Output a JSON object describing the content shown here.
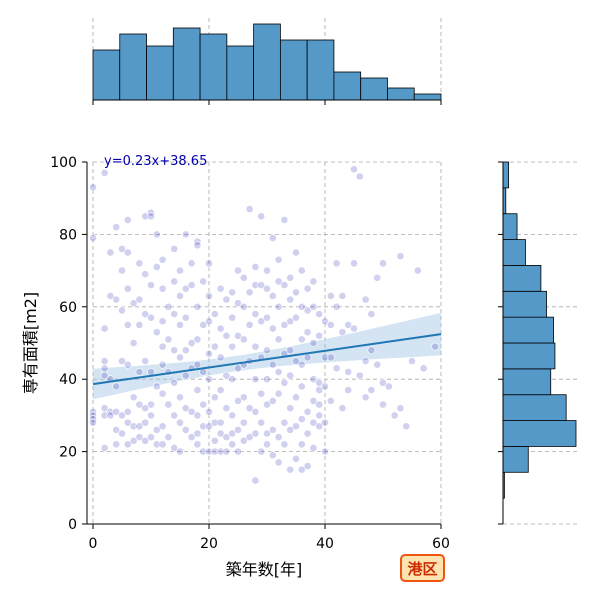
{
  "chart_data": {
    "type": "scatter",
    "xlabel": "築年数[年]",
    "ylabel": "専有面積[m2]",
    "xlim": [
      0,
      60
    ],
    "ylim": [
      0,
      100
    ],
    "xticks": [
      0,
      20,
      40,
      60
    ],
    "yticks": [
      0,
      20,
      40,
      60,
      80,
      100
    ],
    "grid": true,
    "regression": {
      "slope": 0.23,
      "intercept": 38.65,
      "label": "y=0.23x+38.65"
    },
    "badge": "港区",
    "colors": {
      "point": "#2b2bb8",
      "line": "#1f77b4",
      "band": "#9fc3e2",
      "hist": "#5599c9",
      "badge_fill": "#fde3b0",
      "badge_border": "#ee5511"
    },
    "points": [
      [
        0,
        93
      ],
      [
        0,
        79
      ],
      [
        0,
        31
      ],
      [
        0,
        30
      ],
      [
        0,
        29
      ],
      [
        0,
        28
      ],
      [
        2,
        97
      ],
      [
        2,
        54
      ],
      [
        2,
        45
      ],
      [
        2,
        43
      ],
      [
        2,
        41
      ],
      [
        2,
        32
      ],
      [
        2,
        30
      ],
      [
        2,
        21
      ],
      [
        3,
        75
      ],
      [
        3,
        63
      ],
      [
        3,
        40
      ],
      [
        3,
        31
      ],
      [
        3,
        30
      ],
      [
        4,
        82
      ],
      [
        4,
        62
      ],
      [
        4,
        38
      ],
      [
        4,
        31
      ],
      [
        4,
        26
      ],
      [
        4,
        22
      ],
      [
        5,
        76
      ],
      [
        5,
        70
      ],
      [
        5,
        59
      ],
      [
        5,
        45
      ],
      [
        5,
        30
      ],
      [
        5,
        25
      ],
      [
        6,
        84
      ],
      [
        6,
        75
      ],
      [
        6,
        65
      ],
      [
        6,
        55
      ],
      [
        6,
        44
      ],
      [
        6,
        31
      ],
      [
        6,
        28
      ],
      [
        6,
        22
      ],
      [
        7,
        61
      ],
      [
        7,
        50
      ],
      [
        7,
        35
      ],
      [
        7,
        27
      ],
      [
        7,
        23
      ],
      [
        8,
        72
      ],
      [
        8,
        62
      ],
      [
        8,
        55
      ],
      [
        8,
        42
      ],
      [
        8,
        33
      ],
      [
        8,
        27
      ],
      [
        8,
        24
      ],
      [
        9,
        85
      ],
      [
        9,
        69
      ],
      [
        9,
        58
      ],
      [
        9,
        45
      ],
      [
        9,
        32
      ],
      [
        9,
        28
      ],
      [
        9,
        23
      ],
      [
        10,
        86
      ],
      [
        10,
        85
      ],
      [
        10,
        66
      ],
      [
        10,
        57
      ],
      [
        10,
        42
      ],
      [
        10,
        33
      ],
      [
        10,
        30
      ],
      [
        10,
        24
      ],
      [
        11,
        80
      ],
      [
        11,
        71
      ],
      [
        11,
        53
      ],
      [
        11,
        38
      ],
      [
        11,
        26
      ],
      [
        11,
        22
      ],
      [
        12,
        73
      ],
      [
        12,
        65
      ],
      [
        12,
        56
      ],
      [
        12,
        49
      ],
      [
        12,
        44
      ],
      [
        12,
        36
      ],
      [
        12,
        27
      ],
      [
        12,
        22
      ],
      [
        13,
        60
      ],
      [
        13,
        51
      ],
      [
        13,
        42
      ],
      [
        13,
        33
      ],
      [
        13,
        24
      ],
      [
        14,
        76
      ],
      [
        14,
        67
      ],
      [
        14,
        58
      ],
      [
        14,
        48
      ],
      [
        14,
        39
      ],
      [
        14,
        30
      ],
      [
        14,
        21
      ],
      [
        15,
        70
      ],
      [
        15,
        63
      ],
      [
        15,
        55
      ],
      [
        15,
        46
      ],
      [
        15,
        35
      ],
      [
        15,
        28
      ],
      [
        15,
        20
      ],
      [
        16,
        80
      ],
      [
        16,
        65
      ],
      [
        16,
        57
      ],
      [
        16,
        48
      ],
      [
        16,
        41
      ],
      [
        16,
        32
      ],
      [
        16,
        26
      ],
      [
        17,
        72
      ],
      [
        17,
        66
      ],
      [
        17,
        50
      ],
      [
        17,
        43
      ],
      [
        17,
        31
      ],
      [
        17,
        24
      ],
      [
        18,
        78
      ],
      [
        18,
        77
      ],
      [
        18,
        60
      ],
      [
        18,
        51
      ],
      [
        18,
        44
      ],
      [
        18,
        37
      ],
      [
        18,
        30
      ],
      [
        18,
        25
      ],
      [
        18,
        22
      ],
      [
        19,
        67
      ],
      [
        19,
        55
      ],
      [
        19,
        42
      ],
      [
        19,
        33
      ],
      [
        19,
        27
      ],
      [
        19,
        20
      ],
      [
        20,
        72
      ],
      [
        20,
        63
      ],
      [
        20,
        56
      ],
      [
        20,
        47
      ],
      [
        20,
        40
      ],
      [
        20,
        31
      ],
      [
        20,
        27
      ],
      [
        20,
        20
      ],
      [
        21,
        58
      ],
      [
        21,
        49
      ],
      [
        21,
        35
      ],
      [
        21,
        28
      ],
      [
        21,
        23
      ],
      [
        21,
        20
      ],
      [
        22,
        65
      ],
      [
        22,
        54
      ],
      [
        22,
        46
      ],
      [
        22,
        37
      ],
      [
        22,
        28
      ],
      [
        22,
        25
      ],
      [
        22,
        20
      ],
      [
        23,
        62
      ],
      [
        23,
        52
      ],
      [
        23,
        41
      ],
      [
        23,
        32
      ],
      [
        23,
        24
      ],
      [
        23,
        20
      ],
      [
        24,
        64
      ],
      [
        24,
        57
      ],
      [
        24,
        49
      ],
      [
        24,
        40
      ],
      [
        24,
        30
      ],
      [
        24,
        25
      ],
      [
        24,
        22
      ],
      [
        25,
        70
      ],
      [
        25,
        61
      ],
      [
        25,
        52
      ],
      [
        25,
        43
      ],
      [
        25,
        34
      ],
      [
        25,
        26
      ],
      [
        25,
        20
      ],
      [
        26,
        68
      ],
      [
        26,
        60
      ],
      [
        26,
        51
      ],
      [
        26,
        44
      ],
      [
        26,
        35
      ],
      [
        26,
        28
      ],
      [
        26,
        23
      ],
      [
        27,
        87
      ],
      [
        27,
        64
      ],
      [
        27,
        55
      ],
      [
        27,
        45
      ],
      [
        27,
        32
      ],
      [
        27,
        24
      ],
      [
        28,
        71
      ],
      [
        28,
        66
      ],
      [
        28,
        58
      ],
      [
        28,
        49
      ],
      [
        28,
        40
      ],
      [
        28,
        31
      ],
      [
        28,
        25
      ],
      [
        28,
        12
      ],
      [
        29,
        85
      ],
      [
        29,
        66
      ],
      [
        29,
        56
      ],
      [
        29,
        46
      ],
      [
        29,
        36
      ],
      [
        29,
        28
      ],
      [
        29,
        20
      ],
      [
        30,
        70
      ],
      [
        30,
        65
      ],
      [
        30,
        57
      ],
      [
        30,
        48
      ],
      [
        30,
        40
      ],
      [
        30,
        33
      ],
      [
        30,
        25
      ],
      [
        30,
        22
      ],
      [
        31,
        79
      ],
      [
        31,
        63
      ],
      [
        31,
        54
      ],
      [
        31,
        44
      ],
      [
        31,
        34
      ],
      [
        31,
        26
      ],
      [
        31,
        19
      ],
      [
        32,
        73
      ],
      [
        32,
        67
      ],
      [
        32,
        60
      ],
      [
        32,
        51
      ],
      [
        32,
        42
      ],
      [
        32,
        36
      ],
      [
        32,
        24
      ],
      [
        32,
        17
      ],
      [
        33,
        84
      ],
      [
        33,
        66
      ],
      [
        33,
        55
      ],
      [
        33,
        47
      ],
      [
        33,
        39
      ],
      [
        33,
        28
      ],
      [
        33,
        22
      ],
      [
        34,
        68
      ],
      [
        34,
        62
      ],
      [
        34,
        56
      ],
      [
        34,
        48
      ],
      [
        34,
        41
      ],
      [
        34,
        32
      ],
      [
        34,
        26
      ],
      [
        34,
        15
      ],
      [
        35,
        75
      ],
      [
        35,
        64
      ],
      [
        35,
        57
      ],
      [
        35,
        45
      ],
      [
        35,
        35
      ],
      [
        35,
        27
      ],
      [
        35,
        18
      ],
      [
        36,
        70
      ],
      [
        36,
        60
      ],
      [
        36,
        51
      ],
      [
        36,
        44
      ],
      [
        36,
        38
      ],
      [
        36,
        29
      ],
      [
        36,
        22
      ],
      [
        36,
        15
      ],
      [
        37,
        65
      ],
      [
        37,
        59
      ],
      [
        37,
        53
      ],
      [
        37,
        46
      ],
      [
        37,
        31
      ],
      [
        37,
        25
      ],
      [
        37,
        16
      ],
      [
        38,
        67
      ],
      [
        38,
        60
      ],
      [
        38,
        50
      ],
      [
        38,
        40
      ],
      [
        38,
        34
      ],
      [
        38,
        28
      ],
      [
        38,
        21
      ],
      [
        39,
        58
      ],
      [
        39,
        52
      ],
      [
        39,
        39
      ],
      [
        39,
        37
      ],
      [
        39,
        33
      ],
      [
        39,
        30
      ],
      [
        39,
        27
      ],
      [
        40,
        56
      ],
      [
        40,
        46
      ],
      [
        40,
        38
      ],
      [
        40,
        28
      ],
      [
        40,
        20
      ],
      [
        41,
        63
      ],
      [
        41,
        55
      ],
      [
        41,
        46
      ],
      [
        41,
        34
      ],
      [
        42,
        72
      ],
      [
        42,
        60
      ],
      [
        42,
        43
      ],
      [
        43,
        63
      ],
      [
        43,
        53
      ],
      [
        43,
        32
      ],
      [
        44,
        55
      ],
      [
        44,
        42
      ],
      [
        44,
        37
      ],
      [
        45,
        98
      ],
      [
        45,
        72
      ],
      [
        45,
        54
      ],
      [
        46,
        96
      ],
      [
        46,
        41
      ],
      [
        47,
        62
      ],
      [
        47,
        45
      ],
      [
        47,
        35
      ],
      [
        48,
        58
      ],
      [
        48,
        48
      ],
      [
        48,
        37
      ],
      [
        49,
        68
      ],
      [
        49,
        44
      ],
      [
        50,
        72
      ],
      [
        50,
        39
      ],
      [
        50,
        33
      ],
      [
        51,
        38
      ],
      [
        52,
        30
      ],
      [
        53,
        74
      ],
      [
        53,
        32
      ],
      [
        54,
        27
      ],
      [
        55,
        45
      ],
      [
        56,
        70
      ],
      [
        57,
        43
      ],
      [
        59,
        49
      ]
    ]
  }
}
